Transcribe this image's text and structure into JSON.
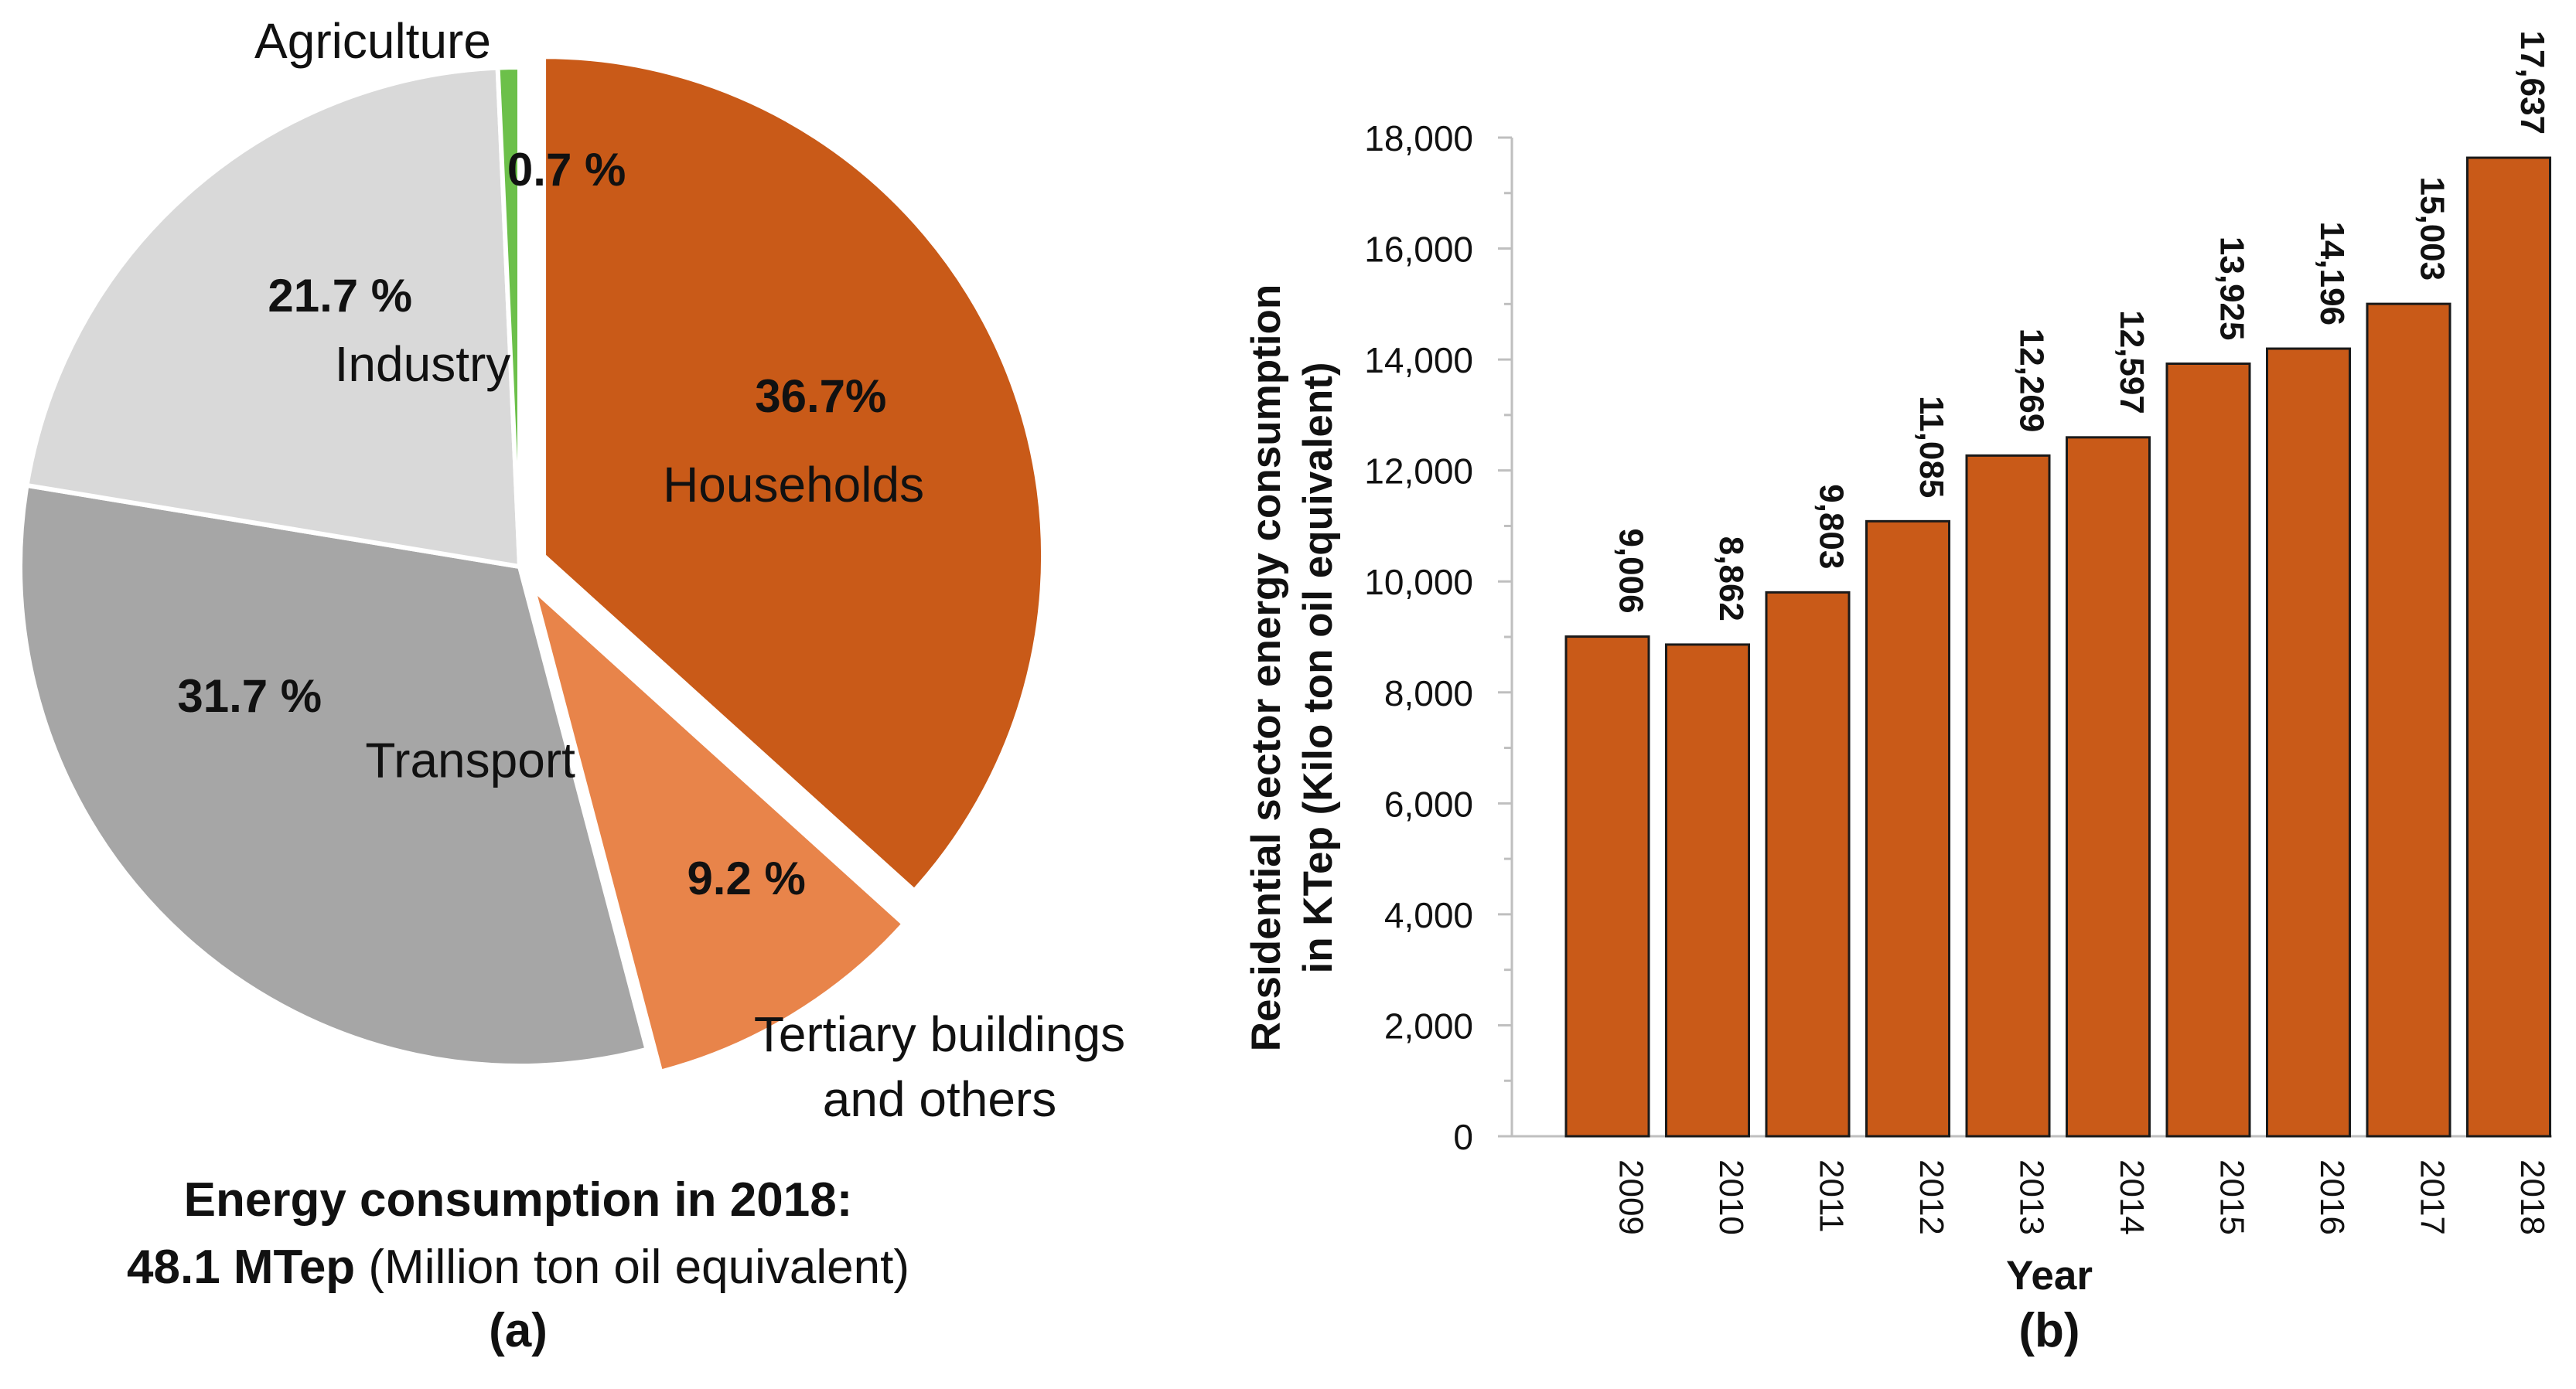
{
  "chart_data": [
    {
      "type": "pie",
      "panel_label": "(a)",
      "title_line1": "Energy consumption in 2018:",
      "title_line2_bold": "48.1 MTep",
      "title_line2_rest": " (Million ton oil equivalent)",
      "slices": [
        {
          "name": "Households",
          "value": 36.7,
          "percent_label": "36.7%",
          "color": "#C95A18",
          "exploded": true
        },
        {
          "name": "Tertiary buildings and others",
          "name_lines": [
            "Tertiary buildings",
            "and others"
          ],
          "value": 9.2,
          "percent_label": "9.2 %",
          "color": "#E8844A",
          "exploded": true
        },
        {
          "name": "Transport",
          "value": 31.7,
          "percent_label": "31.7 %",
          "color": "#A6A6A6",
          "exploded": false
        },
        {
          "name": "Industry",
          "value": 21.7,
          "percent_label": "21.7 %",
          "color": "#D9D9D9",
          "exploded": false
        },
        {
          "name": "Agriculture",
          "value": 0.7,
          "percent_label": "0.7 %",
          "color": "#6CC04A",
          "exploded": false
        }
      ]
    },
    {
      "type": "bar",
      "panel_label": "(b)",
      "categories": [
        "2009",
        "2010",
        "2011",
        "2012",
        "2013",
        "2014",
        "2015",
        "2016",
        "2017",
        "2018"
      ],
      "values": [
        9006,
        8862,
        9803,
        11085,
        12269,
        12597,
        13925,
        14196,
        15003,
        17637
      ],
      "value_labels": [
        "9,006",
        "8,862",
        "9,803",
        "11,085",
        "12,269",
        "12,597",
        "13,925",
        "14,196",
        "15,003",
        "17,637"
      ],
      "xlabel": "Year",
      "ylabel_line1": "Residential sector energy consumption",
      "ylabel_line2": "in KTep (Kilo ton oil equivalent)",
      "ylim": [
        0,
        18000
      ],
      "yticks": [
        0,
        2000,
        4000,
        6000,
        8000,
        10000,
        12000,
        14000,
        16000,
        18000
      ],
      "ytick_labels": [
        "0",
        "2,000",
        "4,000",
        "6,000",
        "8,000",
        "10,000",
        "12,000",
        "14,000",
        "16,000",
        "18,000"
      ],
      "bar_color": "#C95A18"
    }
  ]
}
